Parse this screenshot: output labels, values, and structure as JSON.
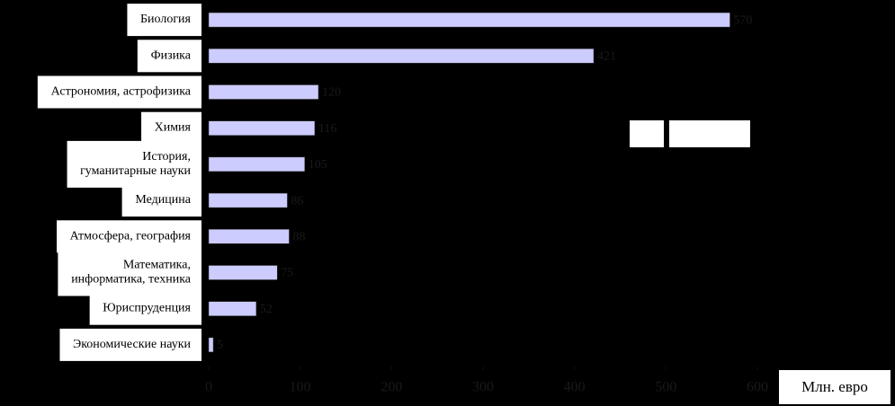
{
  "chart_data": {
    "type": "bar",
    "orientation": "horizontal",
    "categories": [
      "Биология",
      "Физика",
      "Астрономия, астрофизика",
      "Химия",
      "История,\nгуманитарные науки",
      "Медицина",
      "Атмосфера, география",
      "Математика,\nинформатика, техника",
      "Юриспруденция",
      "Экономические науки"
    ],
    "values": [
      570,
      421,
      120,
      116,
      105,
      86,
      88,
      75,
      52,
      5
    ],
    "color": "#ccccff",
    "xlim": [
      0,
      600
    ],
    "xticks": [
      0,
      100,
      200,
      300,
      400,
      500,
      600
    ],
    "x_label": "Млн. евро"
  }
}
